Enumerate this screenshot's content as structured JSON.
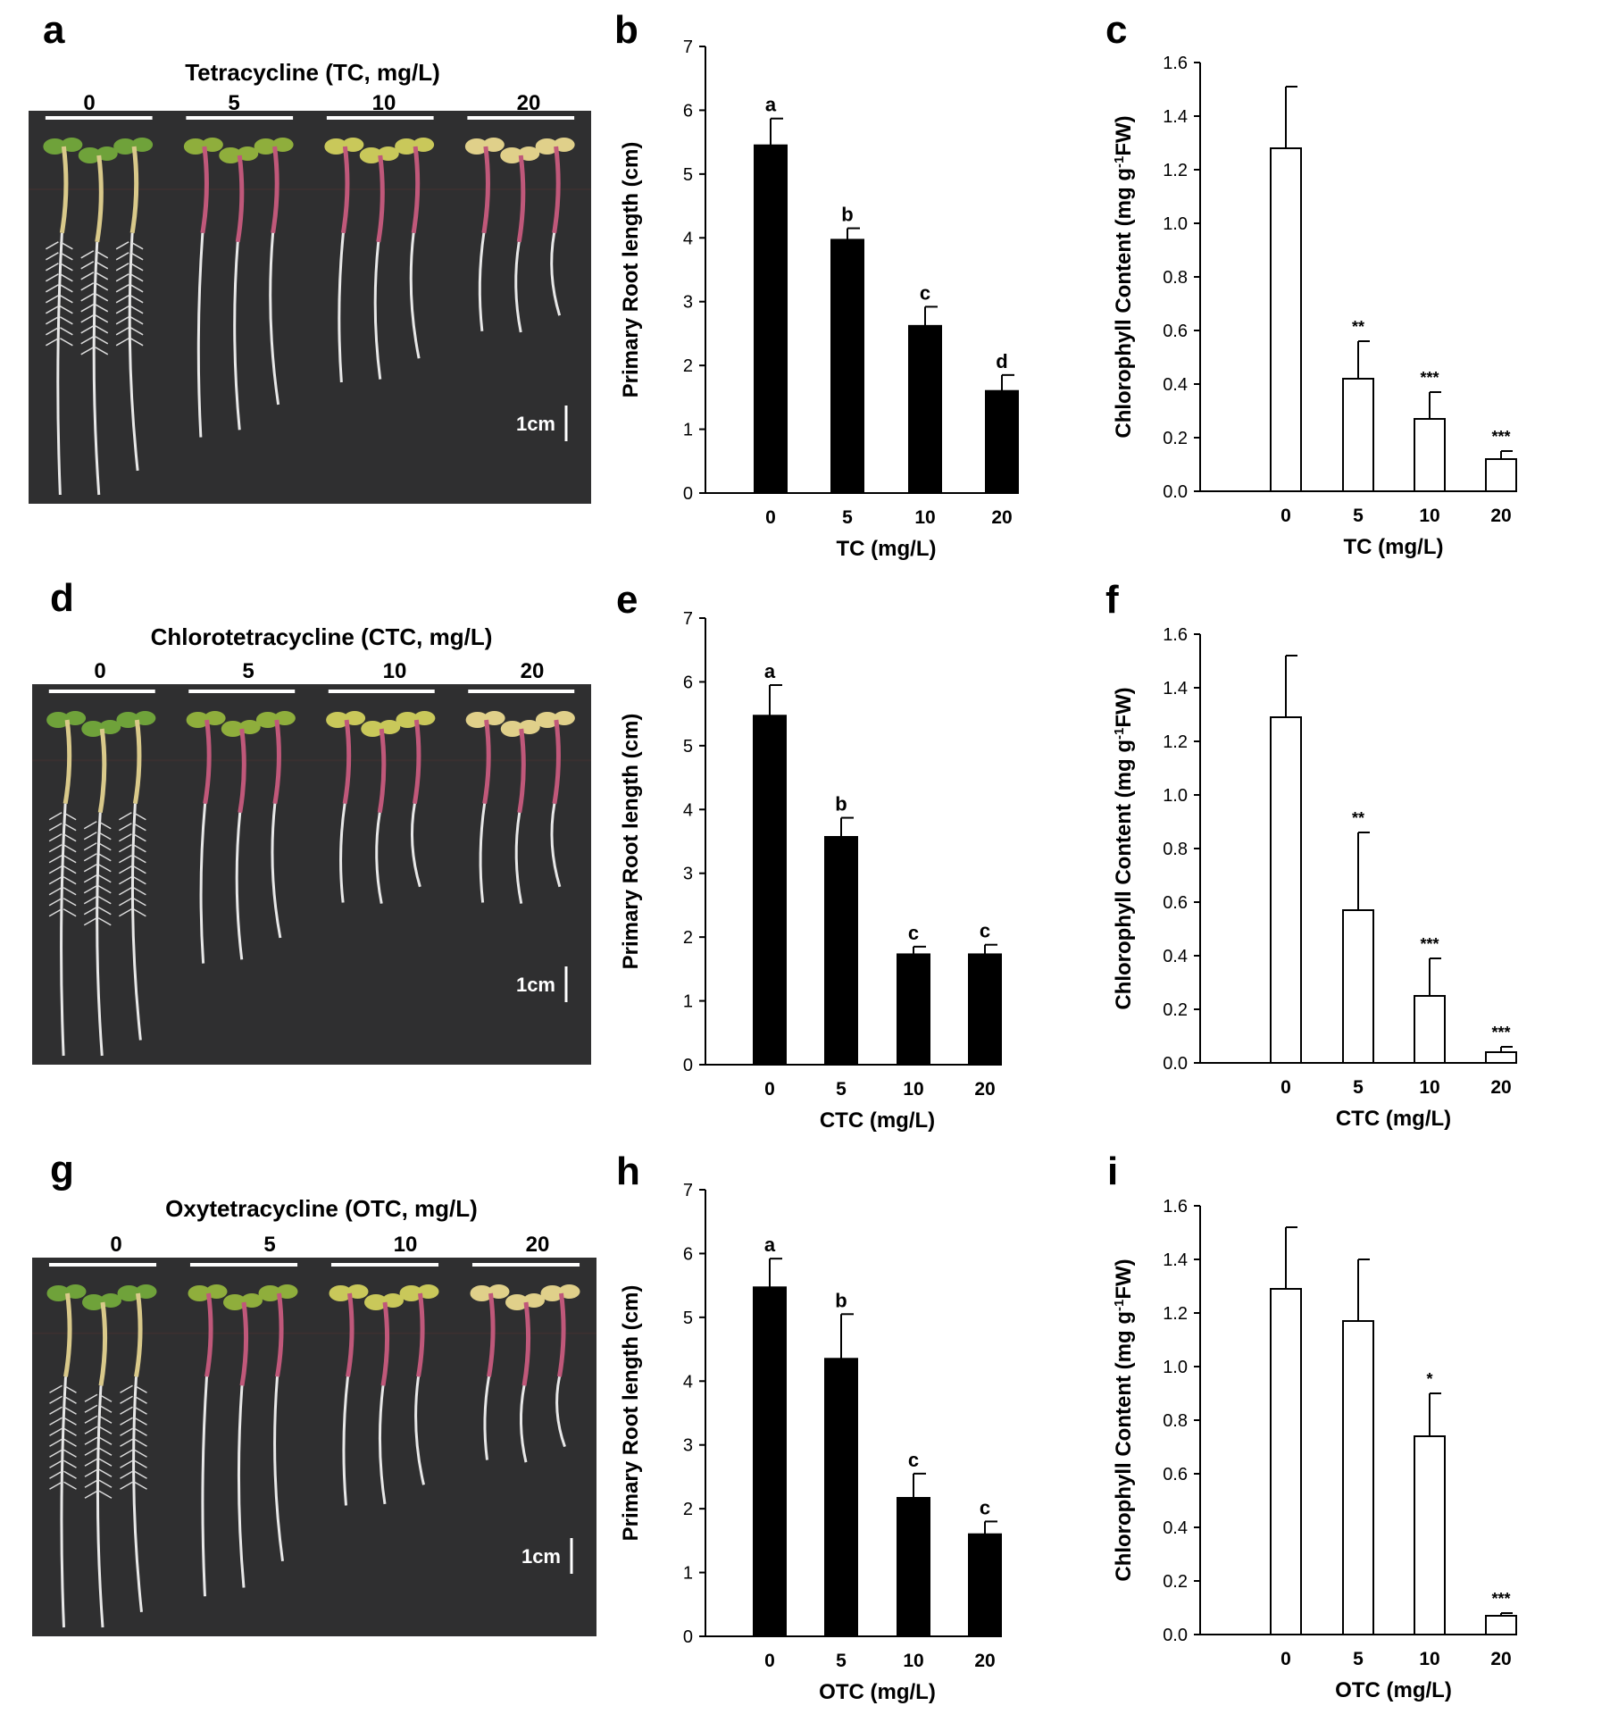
{
  "panels": {
    "a": {
      "letter": "a",
      "title": "Tetracycline (TC, mg/L)",
      "concentrations": [
        "0",
        "5",
        "10",
        "20"
      ],
      "scale_label": "1cm"
    },
    "d": {
      "letter": "d",
      "title": "Chlorotetracycline (CTC, mg/L)",
      "concentrations": [
        "0",
        "5",
        "10",
        "20"
      ],
      "scale_label": "1cm"
    },
    "g": {
      "letter": "g",
      "title": "Oxytetracycline (OTC, mg/L)",
      "concentrations": [
        "0",
        "5",
        "10",
        "20"
      ],
      "scale_label": "1cm"
    }
  },
  "colors": {
    "root_bar": "#000000",
    "chlorophyll_bar": "#ffffff",
    "bar_outline": "#000000",
    "photo_background": "#2f2f30",
    "seedling_leaf": "#7fa53c",
    "seedling_stem": "#c0587a"
  },
  "chart_data": [
    {
      "panel": "b",
      "type": "bar",
      "xlabel": "TC (mg/L)",
      "ylabel": "Primary Root length (cm)",
      "categories": [
        "0",
        "5",
        "10",
        "20"
      ],
      "values": [
        5.45,
        3.97,
        2.62,
        1.6
      ],
      "errors": [
        0.42,
        0.18,
        0.3,
        0.25
      ],
      "annotations": [
        "a",
        "b",
        "c",
        "d"
      ],
      "ylim": [
        0,
        7
      ],
      "yticks": [
        "0",
        "1",
        "2",
        "3",
        "4",
        "5",
        "6",
        "7"
      ],
      "bar_style": "filled"
    },
    {
      "panel": "c",
      "type": "bar",
      "xlabel": "TC (mg/L)",
      "ylabel": "Chlorophyll Content (mg g-1FW)",
      "categories": [
        "0",
        "5",
        "10",
        "20"
      ],
      "values": [
        1.28,
        0.42,
        0.27,
        0.12
      ],
      "errors": [
        0.23,
        0.14,
        0.1,
        0.03
      ],
      "annotations": [
        "",
        "**",
        "***",
        "***"
      ],
      "ylim": [
        0,
        1.6
      ],
      "yticks": [
        "0.0",
        "0.2",
        "0.4",
        "0.6",
        "0.8",
        "1.0",
        "1.2",
        "1.4",
        "1.6"
      ],
      "bar_style": "open"
    },
    {
      "panel": "e",
      "type": "bar",
      "xlabel": "CTC (mg/L)",
      "ylabel": "Primary Root length (cm)",
      "categories": [
        "0",
        "5",
        "10",
        "20"
      ],
      "values": [
        5.47,
        3.57,
        1.73,
        1.73
      ],
      "errors": [
        0.48,
        0.3,
        0.12,
        0.15
      ],
      "annotations": [
        "a",
        "b",
        "c",
        "c"
      ],
      "ylim": [
        0,
        7
      ],
      "yticks": [
        "0",
        "1",
        "2",
        "3",
        "4",
        "5",
        "6",
        "7"
      ],
      "bar_style": "filled"
    },
    {
      "panel": "f",
      "type": "bar",
      "xlabel": "CTC (mg/L)",
      "ylabel": "Chlorophyll Content (mg g-1FW)",
      "categories": [
        "0",
        "5",
        "10",
        "20"
      ],
      "values": [
        1.29,
        0.57,
        0.25,
        0.04
      ],
      "errors": [
        0.23,
        0.29,
        0.14,
        0.02
      ],
      "annotations": [
        "",
        "**",
        "***",
        "***"
      ],
      "ylim": [
        0,
        1.6
      ],
      "yticks": [
        "0.0",
        "0.2",
        "0.4",
        "0.6",
        "0.8",
        "1.0",
        "1.2",
        "1.4",
        "1.6"
      ],
      "bar_style": "open"
    },
    {
      "panel": "h",
      "type": "bar",
      "xlabel": "OTC (mg/L)",
      "ylabel": "Primary Root length (cm)",
      "categories": [
        "0",
        "5",
        "10",
        "20"
      ],
      "values": [
        5.47,
        4.35,
        2.17,
        1.6
      ],
      "errors": [
        0.45,
        0.7,
        0.38,
        0.2
      ],
      "annotations": [
        "a",
        "b",
        "c",
        "c"
      ],
      "ylim": [
        0,
        7
      ],
      "yticks": [
        "0",
        "1",
        "2",
        "3",
        "4",
        "5",
        "6",
        "7"
      ],
      "bar_style": "filled"
    },
    {
      "panel": "i",
      "type": "bar",
      "xlabel": "OTC (mg/L)",
      "ylabel": "Chlorophyll Content (mg g-1FW)",
      "categories": [
        "0",
        "5",
        "10",
        "20"
      ],
      "values": [
        1.29,
        1.17,
        0.74,
        0.07
      ],
      "errors": [
        0.23,
        0.23,
        0.16,
        0.01
      ],
      "annotations": [
        "",
        "",
        "*",
        "***"
      ],
      "ylim": [
        0,
        1.6
      ],
      "yticks": [
        "0.0",
        "0.2",
        "0.4",
        "0.6",
        "0.8",
        "1.0",
        "1.2",
        "1.4",
        "1.6"
      ],
      "bar_style": "open"
    }
  ]
}
